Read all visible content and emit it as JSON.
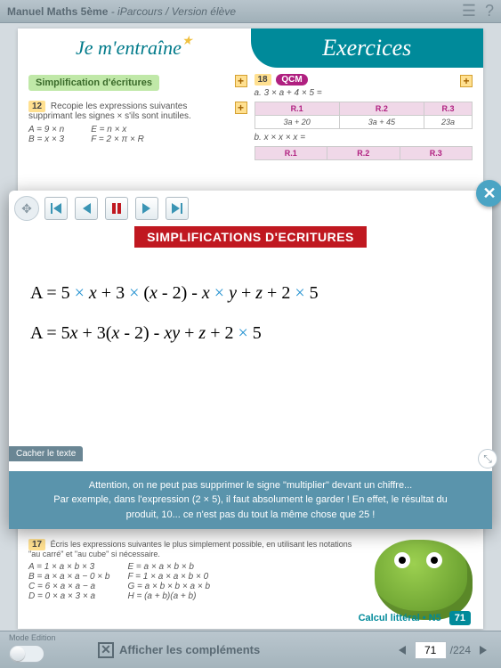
{
  "topbar": {
    "title_bold": "Manuel Maths 5ème",
    "title_rest": " - iParcours / Version élève"
  },
  "page_header": {
    "left": "Je m'entraîne",
    "right": "Exercices"
  },
  "left_col": {
    "section_title": "Simplification d'écritures",
    "ex_num": "12",
    "ex_text": "Recopie les expressions suivantes supprimant les signes × s'ils sont inutiles.",
    "eqs_left": [
      "A = 9 × n",
      "B = x × 3"
    ],
    "eqs_right": [
      "E = n × x",
      "F = 2 × π × R"
    ]
  },
  "right_col": {
    "ex_num": "18",
    "qcm": "QCM",
    "line_a": "a. 3 × a + 4 × 5 =",
    "line_b": "b. x × x × x =",
    "headers": [
      "R.1",
      "R.2",
      "R.3"
    ],
    "row_a": [
      "3a + 20",
      "3a + 45",
      "23a"
    ]
  },
  "overlay": {
    "title": "SIMPLIFICATIONS D'ECRITURES",
    "eq1_parts": [
      "A = 5 ",
      "×",
      " ",
      "x",
      " + 3 ",
      "×",
      " (",
      "x",
      " - 2) - ",
      "x",
      " ",
      "×",
      " ",
      "y",
      " + ",
      "z",
      " + 2 ",
      "×",
      " 5"
    ],
    "eq2_parts": [
      "A = 5",
      "x",
      " + 3(",
      "x",
      " - 2) - ",
      "xy",
      " + ",
      "z",
      " + 2 ",
      "×",
      " 5"
    ],
    "hide_tab": "Cacher le texte",
    "note_l1": "Attention, on ne peut pas supprimer le signe \"multiplier\" devant un chiffre...",
    "note_l2": "Par exemple, dans l'expression (2 × 5), il faut absolument le garder ! En effet, le résultat du",
    "note_l3": "produit, 10... ce n'est pas du tout la même chose que 25 !"
  },
  "bottom": {
    "ex_num": "17",
    "ex_text": "Écris les expressions suivantes le plus simplement possible, en utilisant les notations \"au carré\" et \"au cube\" si nécessaire.",
    "eqs_left": [
      "A = 1 × a × b × 3",
      "B = a × a × a − 0 × b",
      "C = 6 × a × a − a",
      "D = 0 × a × 3 × a"
    ],
    "eqs_right": [
      "E = a × a × b × b",
      "F = 1 × a × a × b × 0",
      "G = a × b × b × a × b",
      "H = (a + b)(a + b)"
    ]
  },
  "page_footer": {
    "label": "Calcul littéral • N5",
    "page": "71"
  },
  "app_footer": {
    "mode": "Mode Edition",
    "afficher": "Afficher les compléments",
    "current": "71",
    "total": "/224"
  }
}
